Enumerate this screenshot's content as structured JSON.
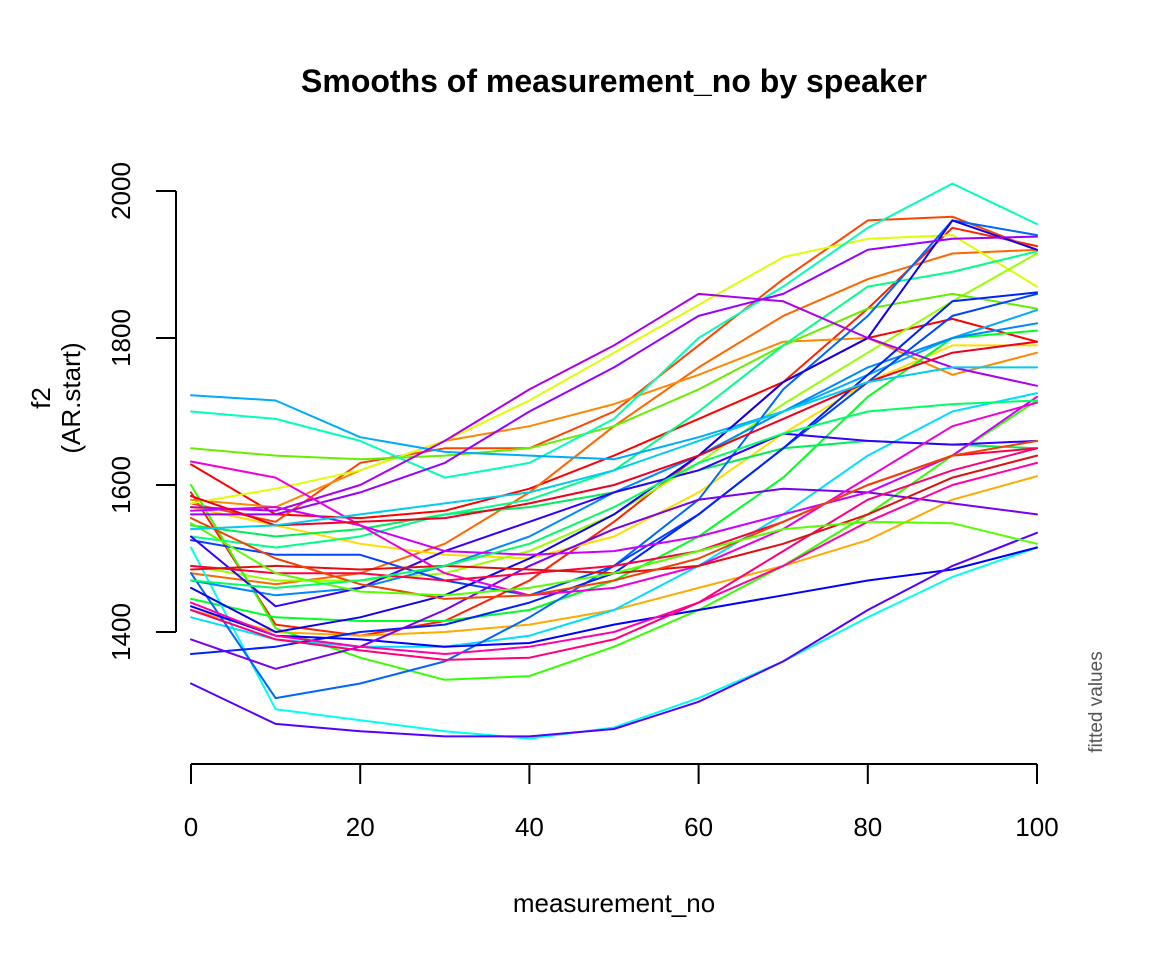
{
  "chart_data": {
    "type": "line",
    "title": "Smooths of measurement_no by speaker",
    "xlabel": "measurement_no",
    "ylabel_lines": [
      "f2",
      "(AR.start)"
    ],
    "side_note": "fitted values",
    "xlim": [
      0,
      100
    ],
    "ylim": [
      1230,
      2020
    ],
    "x_ticks": [
      0,
      20,
      40,
      60,
      80,
      100
    ],
    "y_ticks": [
      1400,
      1600,
      1800,
      2000
    ],
    "grid": false,
    "legend": "none",
    "x": [
      0,
      10,
      20,
      30,
      40,
      50,
      60,
      70,
      80,
      90,
      100
    ],
    "series": [
      {
        "color": "#FF0000",
        "values": [
          1628,
          1560,
          1555,
          1565,
          1595,
          1640,
          1690,
          1740,
          1800,
          1826,
          1795
        ]
      },
      {
        "color": "#FF2200",
        "values": [
          1590,
          1410,
          1395,
          1415,
          1470,
          1550,
          1640,
          1740,
          1840,
          1950,
          1925
        ]
      },
      {
        "color": "#FF4400",
        "values": [
          1575,
          1550,
          1630,
          1650,
          1650,
          1700,
          1790,
          1880,
          1960,
          1965,
          1920
        ]
      },
      {
        "color": "#FF6600",
        "values": [
          1480,
          1465,
          1480,
          1520,
          1590,
          1680,
          1760,
          1830,
          1880,
          1915,
          1920
        ]
      },
      {
        "color": "#FF8800",
        "values": [
          1580,
          1570,
          1620,
          1660,
          1680,
          1710,
          1750,
          1795,
          1800,
          1750,
          1780
        ]
      },
      {
        "color": "#FFAA00",
        "values": [
          1430,
          1400,
          1395,
          1400,
          1410,
          1430,
          1460,
          1490,
          1525,
          1580,
          1612
        ]
      },
      {
        "color": "#FFDD00",
        "values": [
          1570,
          1545,
          1520,
          1505,
          1500,
          1530,
          1590,
          1670,
          1740,
          1790,
          1790
        ]
      },
      {
        "color": "#DDFF00",
        "values": [
          1575,
          1595,
          1620,
          1660,
          1715,
          1780,
          1845,
          1910,
          1935,
          1940,
          1870
        ]
      },
      {
        "color": "#99FF00",
        "values": [
          1490,
          1470,
          1470,
          1480,
          1510,
          1560,
          1630,
          1710,
          1780,
          1850,
          1915
        ]
      },
      {
        "color": "#66EE00",
        "values": [
          1650,
          1640,
          1635,
          1640,
          1650,
          1680,
          1730,
          1790,
          1840,
          1860,
          1840
        ]
      },
      {
        "color": "#33FF00",
        "values": [
          1600,
          1405,
          1365,
          1335,
          1340,
          1380,
          1430,
          1490,
          1560,
          1640,
          1715
        ]
      },
      {
        "color": "#00FF22",
        "values": [
          1445,
          1420,
          1415,
          1415,
          1430,
          1470,
          1530,
          1610,
          1720,
          1800,
          1810
        ]
      },
      {
        "color": "#00EE55",
        "values": [
          1545,
          1530,
          1540,
          1560,
          1570,
          1590,
          1620,
          1650,
          1660,
          1655,
          1650
        ]
      },
      {
        "color": "#00FF88",
        "values": [
          1530,
          1515,
          1530,
          1560,
          1580,
          1620,
          1700,
          1790,
          1870,
          1890,
          1918
        ]
      },
      {
        "color": "#00FFBB",
        "values": [
          1700,
          1690,
          1660,
          1610,
          1630,
          1690,
          1800,
          1870,
          1950,
          2010,
          1955
        ]
      },
      {
        "color": "#00FFEE",
        "values": [
          1515,
          1295,
          1280,
          1265,
          1255,
          1270,
          1310,
          1360,
          1420,
          1475,
          1515
        ]
      },
      {
        "color": "#00DDFF",
        "values": [
          1420,
          1390,
          1380,
          1380,
          1395,
          1430,
          1490,
          1560,
          1640,
          1700,
          1725
        ]
      },
      {
        "color": "#00AAFF",
        "values": [
          1722,
          1715,
          1665,
          1645,
          1640,
          1635,
          1665,
          1700,
          1750,
          1800,
          1838
        ]
      },
      {
        "color": "#0088FF",
        "values": [
          1470,
          1450,
          1460,
          1490,
          1530,
          1590,
          1640,
          1700,
          1760,
          1800,
          1820
        ]
      },
      {
        "color": "#0066FF",
        "values": [
          1480,
          1310,
          1330,
          1360,
          1420,
          1490,
          1580,
          1730,
          1830,
          1960,
          1940
        ]
      },
      {
        "color": "#0044FF",
        "values": [
          1525,
          1505,
          1505,
          1470,
          1450,
          1490,
          1560,
          1650,
          1740,
          1830,
          1860
        ]
      },
      {
        "color": "#0022FF",
        "values": [
          1370,
          1380,
          1400,
          1410,
          1440,
          1480,
          1560,
          1650,
          1750,
          1850,
          1862
        ]
      },
      {
        "color": "#0000FF",
        "values": [
          1435,
          1395,
          1390,
          1380,
          1385,
          1410,
          1430,
          1450,
          1470,
          1485,
          1515
        ]
      },
      {
        "color": "#1100EE",
        "values": [
          1460,
          1400,
          1420,
          1450,
          1500,
          1560,
          1640,
          1740,
          1800,
          1960,
          1920
        ]
      },
      {
        "color": "#3300FF",
        "values": [
          1530,
          1435,
          1460,
          1510,
          1550,
          1590,
          1620,
          1670,
          1660,
          1655,
          1660
        ]
      },
      {
        "color": "#5500FF",
        "values": [
          1330,
          1275,
          1265,
          1258,
          1258,
          1268,
          1305,
          1360,
          1430,
          1490,
          1535
        ]
      },
      {
        "color": "#7700EE",
        "values": [
          1390,
          1350,
          1380,
          1430,
          1490,
          1540,
          1580,
          1595,
          1590,
          1575,
          1560
        ]
      },
      {
        "color": "#9900FF",
        "values": [
          1560,
          1560,
          1590,
          1630,
          1700,
          1760,
          1830,
          1860,
          1920,
          1935,
          1938
        ]
      },
      {
        "color": "#AA00EE",
        "values": [
          1570,
          1565,
          1600,
          1660,
          1730,
          1790,
          1860,
          1850,
          1800,
          1760,
          1735
        ]
      },
      {
        "color": "#CC00FF",
        "values": [
          1565,
          1570,
          1545,
          1510,
          1505,
          1510,
          1530,
          1560,
          1590,
          1640,
          1720
        ]
      },
      {
        "color": "#EE00DD",
        "values": [
          1632,
          1610,
          1545,
          1480,
          1450,
          1460,
          1490,
          1540,
          1610,
          1680,
          1712
        ]
      },
      {
        "color": "#FF00AA",
        "values": [
          1440,
          1395,
          1380,
          1370,
          1380,
          1400,
          1440,
          1490,
          1550,
          1600,
          1630
        ]
      },
      {
        "color": "#FF0077",
        "values": [
          1430,
          1390,
          1375,
          1362,
          1365,
          1390,
          1440,
          1510,
          1580,
          1620,
          1650
        ]
      },
      {
        "color": "#FF0044",
        "values": [
          1490,
          1480,
          1480,
          1470,
          1480,
          1490,
          1510,
          1550,
          1600,
          1640,
          1650
        ]
      },
      {
        "color": "#EE0022",
        "values": [
          1585,
          1545,
          1550,
          1555,
          1575,
          1600,
          1640,
          1690,
          1740,
          1780,
          1795
        ]
      },
      {
        "color": "#DD1111",
        "values": [
          1485,
          1490,
          1485,
          1490,
          1485,
          1480,
          1490,
          1520,
          1560,
          1610,
          1640
        ]
      },
      {
        "color": "#EE4400",
        "values": [
          1555,
          1500,
          1465,
          1445,
          1450,
          1470,
          1500,
          1550,
          1600,
          1640,
          1660
        ]
      },
      {
        "color": "#55FF00",
        "values": [
          1548,
          1480,
          1455,
          1450,
          1460,
          1480,
          1510,
          1540,
          1550,
          1548,
          1520
        ]
      },
      {
        "color": "#00FF66",
        "values": [
          1470,
          1460,
          1470,
          1490,
          1520,
          1570,
          1630,
          1670,
          1700,
          1710,
          1715
        ]
      },
      {
        "color": "#00CCEE",
        "values": [
          1540,
          1545,
          1560,
          1575,
          1590,
          1620,
          1660,
          1700,
          1740,
          1760,
          1760
        ]
      }
    ]
  }
}
